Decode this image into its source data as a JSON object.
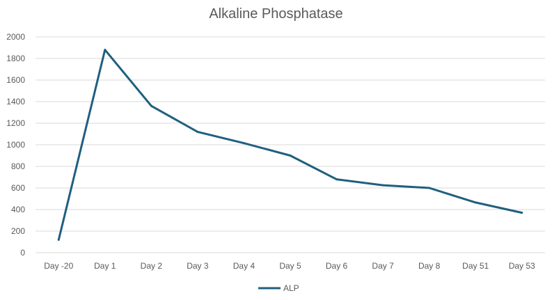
{
  "chart_data": {
    "type": "line",
    "title": "Alkaline Phosphatase",
    "xlabel": "",
    "ylabel": "",
    "categories": [
      "Day -20",
      "Day 1",
      "Day 2",
      "Day 3",
      "Day 4",
      "Day 5",
      "Day 6",
      "Day 7",
      "Day 8",
      "Day 51",
      "Day 53"
    ],
    "series": [
      {
        "name": "ALP",
        "color": "#1f5f7f",
        "values": [
          120,
          1880,
          1360,
          1120,
          1015,
          900,
          680,
          625,
          600,
          465,
          370
        ]
      }
    ],
    "ylim": [
      0,
      2000
    ],
    "yticks": [
      0,
      200,
      400,
      600,
      800,
      1000,
      1200,
      1400,
      1600,
      1800,
      2000
    ],
    "grid": true,
    "legend_position": "bottom"
  }
}
